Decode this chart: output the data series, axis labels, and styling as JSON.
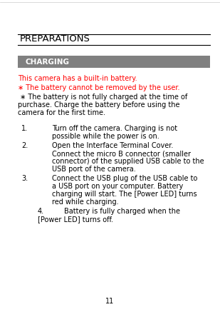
{
  "bg_color": "#ffffff",
  "title": "PREPARATIONS",
  "title_color": "#000000",
  "title_fontsize": 9.5,
  "section_bg_color": "#808080",
  "section_text": "CHARGING",
  "section_text_color": "#ffffff",
  "section_fontsize": 7.5,
  "red_color": "#ff0000",
  "black_color": "#000000",
  "body_fontsize": 7.0,
  "page_num": "11",
  "page_fontsize": 7.0
}
